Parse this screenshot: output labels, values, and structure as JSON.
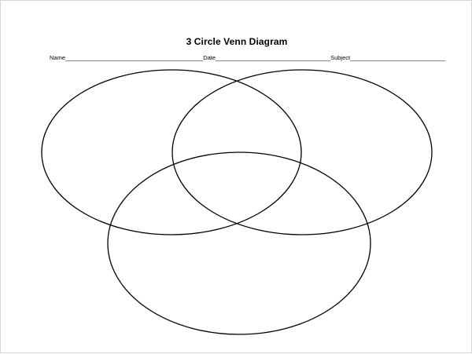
{
  "worksheet": {
    "title": "3 Circle Venn Diagram",
    "fields": {
      "name_label": "Name",
      "name_line": "__________________________________________",
      "date_label": "Date",
      "date_line": "___________________________________",
      "subject_label": "Subject",
      "subject_line": "_____________________________"
    }
  },
  "diagram": {
    "circle_count": 3,
    "stroke_color": "#000000"
  }
}
